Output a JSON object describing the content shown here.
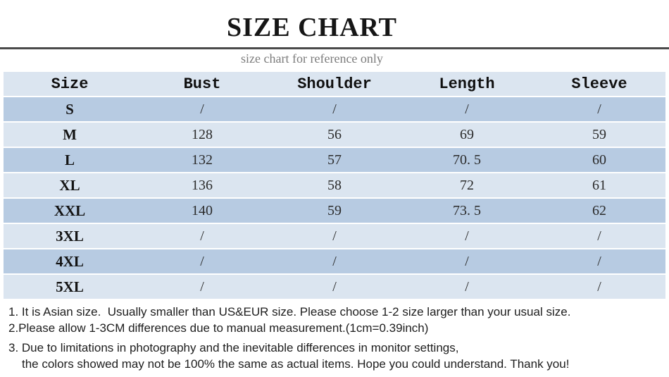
{
  "header": {
    "title": "SIZE CHART",
    "subtitle": "size chart for reference only"
  },
  "table": {
    "columns": [
      "Size",
      "Bust",
      "Shoulder",
      "Length",
      "Sleeve"
    ],
    "rows": [
      [
        "S",
        "/",
        "/",
        "/",
        "/"
      ],
      [
        "M",
        "128",
        "56",
        "69",
        "59"
      ],
      [
        "L",
        "132",
        "57",
        "70. 5",
        "60"
      ],
      [
        "XL",
        "136",
        "58",
        "72",
        "61"
      ],
      [
        "XXL",
        "140",
        "59",
        "73. 5",
        "62"
      ],
      [
        "3XL",
        "/",
        "/",
        "/",
        "/"
      ],
      [
        "4XL",
        "/",
        "/",
        "/",
        "/"
      ],
      [
        "5XL",
        "/",
        "/",
        "/",
        "/"
      ]
    ]
  },
  "notes": [
    "1. It is Asian size.  Usually smaller than US&EUR size. Please choose 1-2 size larger than your usual size.",
    "2.Please allow 1-3CM differences due to manual measurement.(1cm=0.39inch)",
    "3. Due to limitations in photography and the inevitable differences in monitor settings,",
    "the colors showed may not be 100% the same as actual items. Hope you could understand. Thank you!"
  ],
  "colors": {
    "row_light": "#dbe5f0",
    "row_dark": "#b7cbe2",
    "title_text": "#161616",
    "subtitle_text": "#7b7b7b",
    "divider": "#4a4a4a",
    "note_text": "#1d1d1d"
  },
  "chart_data": {
    "type": "table",
    "title": "SIZE CHART",
    "subtitle": "size chart for reference only",
    "columns": [
      "Size",
      "Bust",
      "Shoulder",
      "Length",
      "Sleeve"
    ],
    "rows": [
      {
        "size": "S",
        "bust": null,
        "shoulder": null,
        "length": null,
        "sleeve": null
      },
      {
        "size": "M",
        "bust": 128,
        "shoulder": 56,
        "length": 69,
        "sleeve": 59
      },
      {
        "size": "L",
        "bust": 132,
        "shoulder": 57,
        "length": 70.5,
        "sleeve": 60
      },
      {
        "size": "XL",
        "bust": 136,
        "shoulder": 58,
        "length": 72,
        "sleeve": 61
      },
      {
        "size": "XXL",
        "bust": 140,
        "shoulder": 59,
        "length": 73.5,
        "sleeve": 62
      },
      {
        "size": "3XL",
        "bust": null,
        "shoulder": null,
        "length": null,
        "sleeve": null
      },
      {
        "size": "4XL",
        "bust": null,
        "shoulder": null,
        "length": null,
        "sleeve": null
      },
      {
        "size": "5XL",
        "bust": null,
        "shoulder": null,
        "length": null,
        "sleeve": null
      }
    ],
    "notes": [
      "1. It is Asian size.  Usually smaller than US&EUR size. Please choose 1-2 size larger than your usual size.",
      "2.Please allow 1-3CM differences due to manual measurement.(1cm=0.39inch)",
      "3. Due to limitations in photography and the inevitable differences in monitor settings, the colors showed may not be 100% the same as actual items. Hope you could understand. Thank you!"
    ]
  }
}
